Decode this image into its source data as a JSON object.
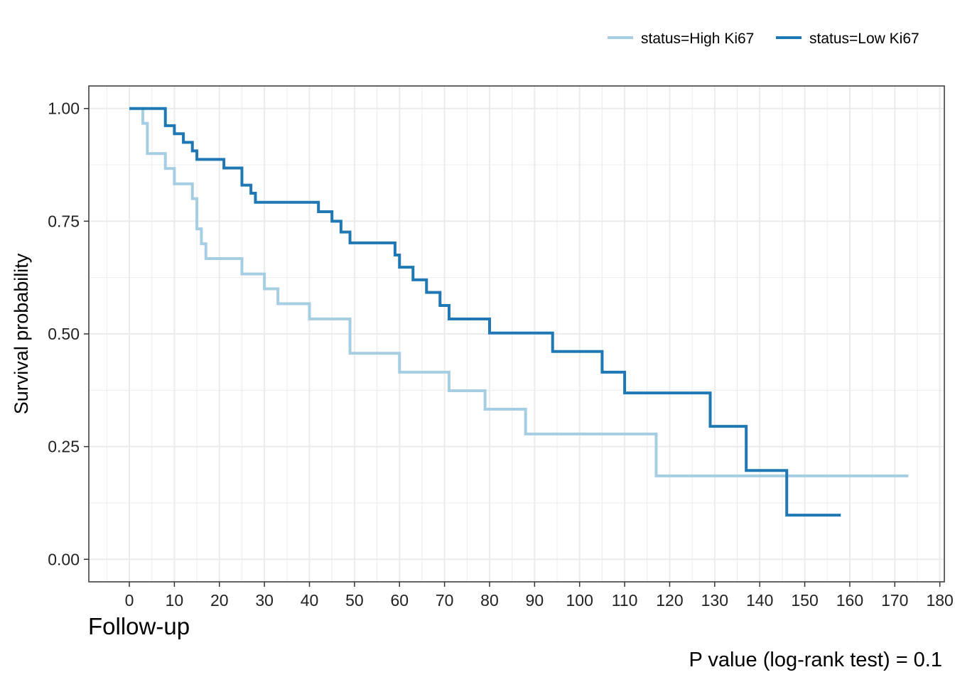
{
  "chart_data": {
    "type": "line",
    "step": true,
    "xlabel": "Follow-up",
    "ylabel": "Survival probability",
    "xlim": [
      -9,
      181
    ],
    "ylim": [
      -0.05,
      1.05
    ],
    "x_ticks": [
      "0",
      "10",
      "20",
      "30",
      "40",
      "50",
      "60",
      "70",
      "80",
      "90",
      "100",
      "110",
      "120",
      "130",
      "140",
      "150",
      "160",
      "170",
      "180"
    ],
    "y_ticks": [
      "0.00",
      "0.25",
      "0.50",
      "0.75",
      "1.00"
    ],
    "grid": true,
    "legend_position": "top-right",
    "annotation": "P value (log-rank test) = 0.1",
    "series": [
      {
        "name": "status=High Ki67",
        "color": "#a6cee3",
        "x": [
          0,
          3,
          4,
          8,
          10,
          14,
          15,
          16,
          17,
          25,
          30,
          33,
          40,
          49,
          60,
          71,
          79,
          88,
          117,
          173
        ],
        "y": [
          1.0,
          0.967,
          0.9,
          0.867,
          0.833,
          0.8,
          0.733,
          0.7,
          0.667,
          0.633,
          0.6,
          0.567,
          0.533,
          0.457,
          0.415,
          0.374,
          0.333,
          0.278,
          0.185,
          0.185
        ]
      },
      {
        "name": "status=Low Ki67",
        "color": "#1f78b4",
        "x": [
          0,
          8,
          10,
          12,
          14,
          15,
          21,
          25,
          27,
          28,
          42,
          45,
          47,
          49,
          59,
          60,
          63,
          66,
          69,
          71,
          80,
          94,
          105,
          110,
          129,
          137,
          146,
          158
        ],
        "y": [
          1.0,
          0.962,
          0.944,
          0.925,
          0.906,
          0.887,
          0.868,
          0.83,
          0.812,
          0.792,
          0.771,
          0.75,
          0.726,
          0.702,
          0.675,
          0.648,
          0.62,
          0.592,
          0.563,
          0.533,
          0.502,
          0.461,
          0.415,
          0.369,
          0.295,
          0.197,
          0.098,
          0.098
        ]
      }
    ]
  }
}
